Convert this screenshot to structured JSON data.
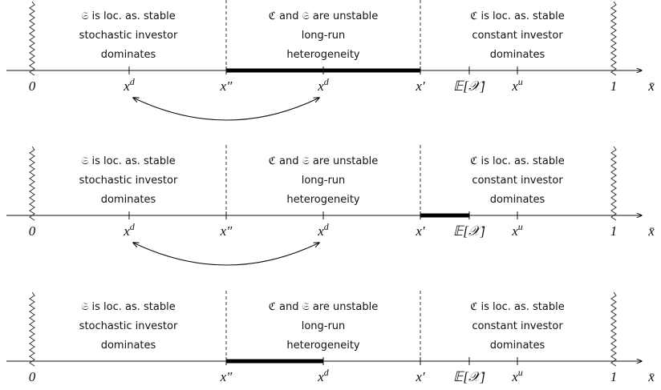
{
  "panels": [
    {
      "regions": [
        [
          "𝔖 is loc. as. stable",
          "stochastic investor",
          "dominates"
        ],
        [
          "ℭ and 𝔖 are unstable",
          "long-run",
          "heterogeneity"
        ],
        [
          "ℭ is loc. as. stable",
          "constant investor",
          "dominates"
        ]
      ],
      "labels": [
        {
          "text": "0"
        },
        {
          "text": "x",
          "sup": "d"
        },
        {
          "text": "x″"
        },
        {
          "text": "x",
          "sup": "d"
        },
        {
          "text": "x′"
        },
        {
          "text": "𝔼[𝒳]"
        },
        {
          "text": "x",
          "sup": "u"
        },
        {
          "text": "1"
        },
        {
          "text": "x̄"
        }
      ]
    },
    {
      "regions": [
        [
          "𝔖 is loc. as. stable",
          "stochastic investor",
          "dominates"
        ],
        [
          "ℭ and 𝔖 are unstable",
          "long-run",
          "heterogeneity"
        ],
        [
          "ℭ is loc. as. stable",
          "constant investor",
          "dominates"
        ]
      ],
      "labels": [
        {
          "text": "0"
        },
        {
          "text": "x",
          "sup": "d"
        },
        {
          "text": "x″"
        },
        {
          "text": "x",
          "sup": "d"
        },
        {
          "text": "x′"
        },
        {
          "text": "𝔼[𝒳]"
        },
        {
          "text": "x",
          "sup": "u"
        },
        {
          "text": "1"
        },
        {
          "text": "x̄"
        }
      ]
    },
    {
      "regions": [
        [
          "𝔖 is loc. as. stable",
          "stochastic investor",
          "dominates"
        ],
        [
          "ℭ and 𝔖 are unstable",
          "long-run",
          "heterogeneity"
        ],
        [
          "ℭ is loc. as. stable",
          "constant investor",
          "dominates"
        ]
      ],
      "labels": [
        {
          "text": "0"
        },
        {
          "text": "x″"
        },
        {
          "text": "x",
          "sup": "d"
        },
        {
          "text": "x′"
        },
        {
          "text": "𝔼[𝒳]"
        },
        {
          "text": "x",
          "sup": "u"
        },
        {
          "text": "1"
        },
        {
          "text": "x̄"
        }
      ]
    }
  ]
}
